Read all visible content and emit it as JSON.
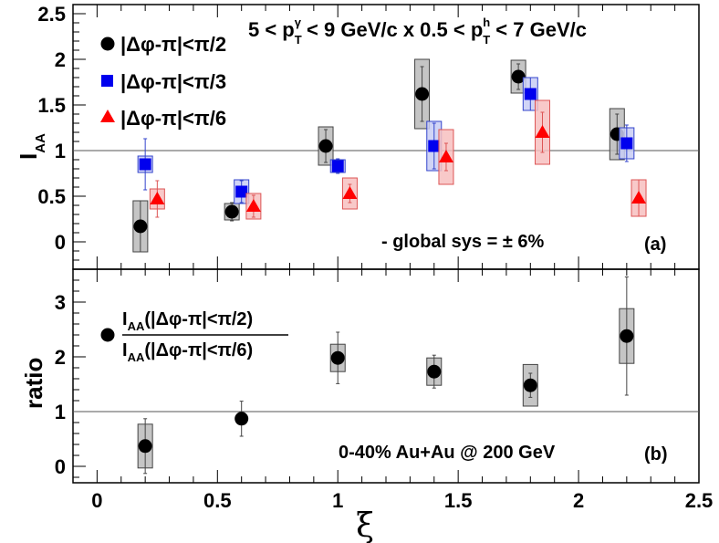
{
  "chart_data": [
    {
      "panel": "a",
      "type": "scatter",
      "title": "5 < p_T^γ < 9 GeV/c x 0.5 < p_T^h < 7 GeV/c",
      "title_parts": {
        "t1": "5 < p",
        "t1_sub": "T",
        "t1_sup": "γ",
        "t2": " < 9 GeV/c x 0.5 < p",
        "t2_sub": "T",
        "t2_sup": "h",
        "t3": " < 7 GeV/c"
      },
      "ylabel": "I",
      "ylabel_sub": "AA",
      "xlim": [
        -0.1,
        2.5
      ],
      "ylim": [
        -0.3,
        2.6
      ],
      "yticks": [
        "0",
        "0.5",
        "1",
        "1.5",
        "2",
        "2.5"
      ],
      "ytick_values": [
        0,
        0.5,
        1,
        1.5,
        2,
        2.5
      ],
      "reference_line": 1,
      "annotation_sys": "- global sys = ",
      "annotation_pm": "± 6%",
      "panel_label": "(a)",
      "series": [
        {
          "name": "|Δφ-π|<π/2",
          "marker": "circle",
          "color": "#000000",
          "box_fill": "#bbbbbb",
          "box_stroke": "#444444",
          "points": [
            {
              "x": 0.18,
              "y": 0.17,
              "err": 0.28,
              "sys": 0.28
            },
            {
              "x": 0.56,
              "y": 0.33,
              "err": 0.1,
              "sys": 0.09
            },
            {
              "x": 0.95,
              "y": 1.05,
              "err": 0.18,
              "sys": 0.21
            },
            {
              "x": 1.35,
              "y": 1.62,
              "err": 0.3,
              "sys": 0.38
            },
            {
              "x": 1.75,
              "y": 1.81,
              "err": 0.14,
              "sys": 0.18
            },
            {
              "x": 2.16,
              "y": 1.18,
              "err": 0.22,
              "sys": 0.28
            }
          ]
        },
        {
          "name": "|Δφ-π|<π/3",
          "marker": "square",
          "color": "#0000ee",
          "box_fill": "#c8ccf5",
          "box_stroke": "#3344cc",
          "points": [
            {
              "x": 0.2,
              "y": 0.85,
              "err": 0.28,
              "sys": 0.09
            },
            {
              "x": 0.6,
              "y": 0.55,
              "err": 0.12,
              "sys": 0.13
            },
            {
              "x": 1.0,
              "y": 0.83,
              "err": 0.08,
              "sys": 0.07
            },
            {
              "x": 1.4,
              "y": 1.05,
              "err": 0.25,
              "sys": 0.27
            },
            {
              "x": 1.8,
              "y": 1.62,
              "err": 0.18,
              "sys": 0.18
            },
            {
              "x": 2.2,
              "y": 1.08,
              "err": 0.2,
              "sys": 0.17
            }
          ]
        },
        {
          "name": "|Δφ-π|<π/6",
          "marker": "triangle",
          "color": "#ff0000",
          "box_fill": "#f7c0c0",
          "box_stroke": "#dd5555",
          "points": [
            {
              "x": 0.25,
              "y": 0.47,
              "err": 0.2,
              "sys": 0.11
            },
            {
              "x": 0.65,
              "y": 0.39,
              "err": 0.12,
              "sys": 0.14
            },
            {
              "x": 1.05,
              "y": 0.53,
              "err": 0.1,
              "sys": 0.17
            },
            {
              "x": 1.45,
              "y": 0.93,
              "err": 0.15,
              "sys": 0.3
            },
            {
              "x": 1.85,
              "y": 1.2,
              "err": 0.22,
              "sys": 0.35
            },
            {
              "x": 2.25,
              "y": 0.48,
              "err": 0.2,
              "sys": 0.2
            }
          ]
        }
      ]
    },
    {
      "panel": "b",
      "type": "scatter",
      "ylabel": "ratio",
      "xlabel": "ξ",
      "xlim": [
        -0.1,
        2.5
      ],
      "ylim": [
        -0.3,
        3.6
      ],
      "xticks": [
        "0",
        "0.5",
        "1",
        "1.5",
        "2",
        "2.5"
      ],
      "xtick_values": [
        0,
        0.5,
        1,
        1.5,
        2,
        2.5
      ],
      "yticks": [
        "0",
        "1",
        "2",
        "3"
      ],
      "ytick_values": [
        0,
        1,
        2,
        3
      ],
      "reference_line": 1,
      "legend": {
        "numerator": "AA",
        "num_text": "(|Δφ-π|<π/2)",
        "denominator": "AA",
        "den_text": "(|Δφ-π|<π/6)",
        "prefix": "I"
      },
      "annotation": "0-40% Au+Au @ 200 GeV",
      "panel_label": "(b)",
      "series": [
        {
          "name": "ratio",
          "marker": "circle",
          "color": "#000000",
          "box_fill": "#bbbbbb",
          "box_stroke": "#444444",
          "points": [
            {
              "x": 0.2,
              "y": 0.37,
              "err": 0.5,
              "sys": 0.4
            },
            {
              "x": 0.6,
              "y": 0.87,
              "err": 0.32,
              "sys": 0.0
            },
            {
              "x": 1.0,
              "y": 1.98,
              "err": 0.47,
              "sys": 0.25
            },
            {
              "x": 1.4,
              "y": 1.73,
              "err": 0.3,
              "sys": 0.25
            },
            {
              "x": 1.8,
              "y": 1.48,
              "err": 0.22,
              "sys": 0.38
            },
            {
              "x": 2.2,
              "y": 2.38,
              "err": 1.08,
              "sys": 0.5
            }
          ]
        }
      ]
    }
  ]
}
